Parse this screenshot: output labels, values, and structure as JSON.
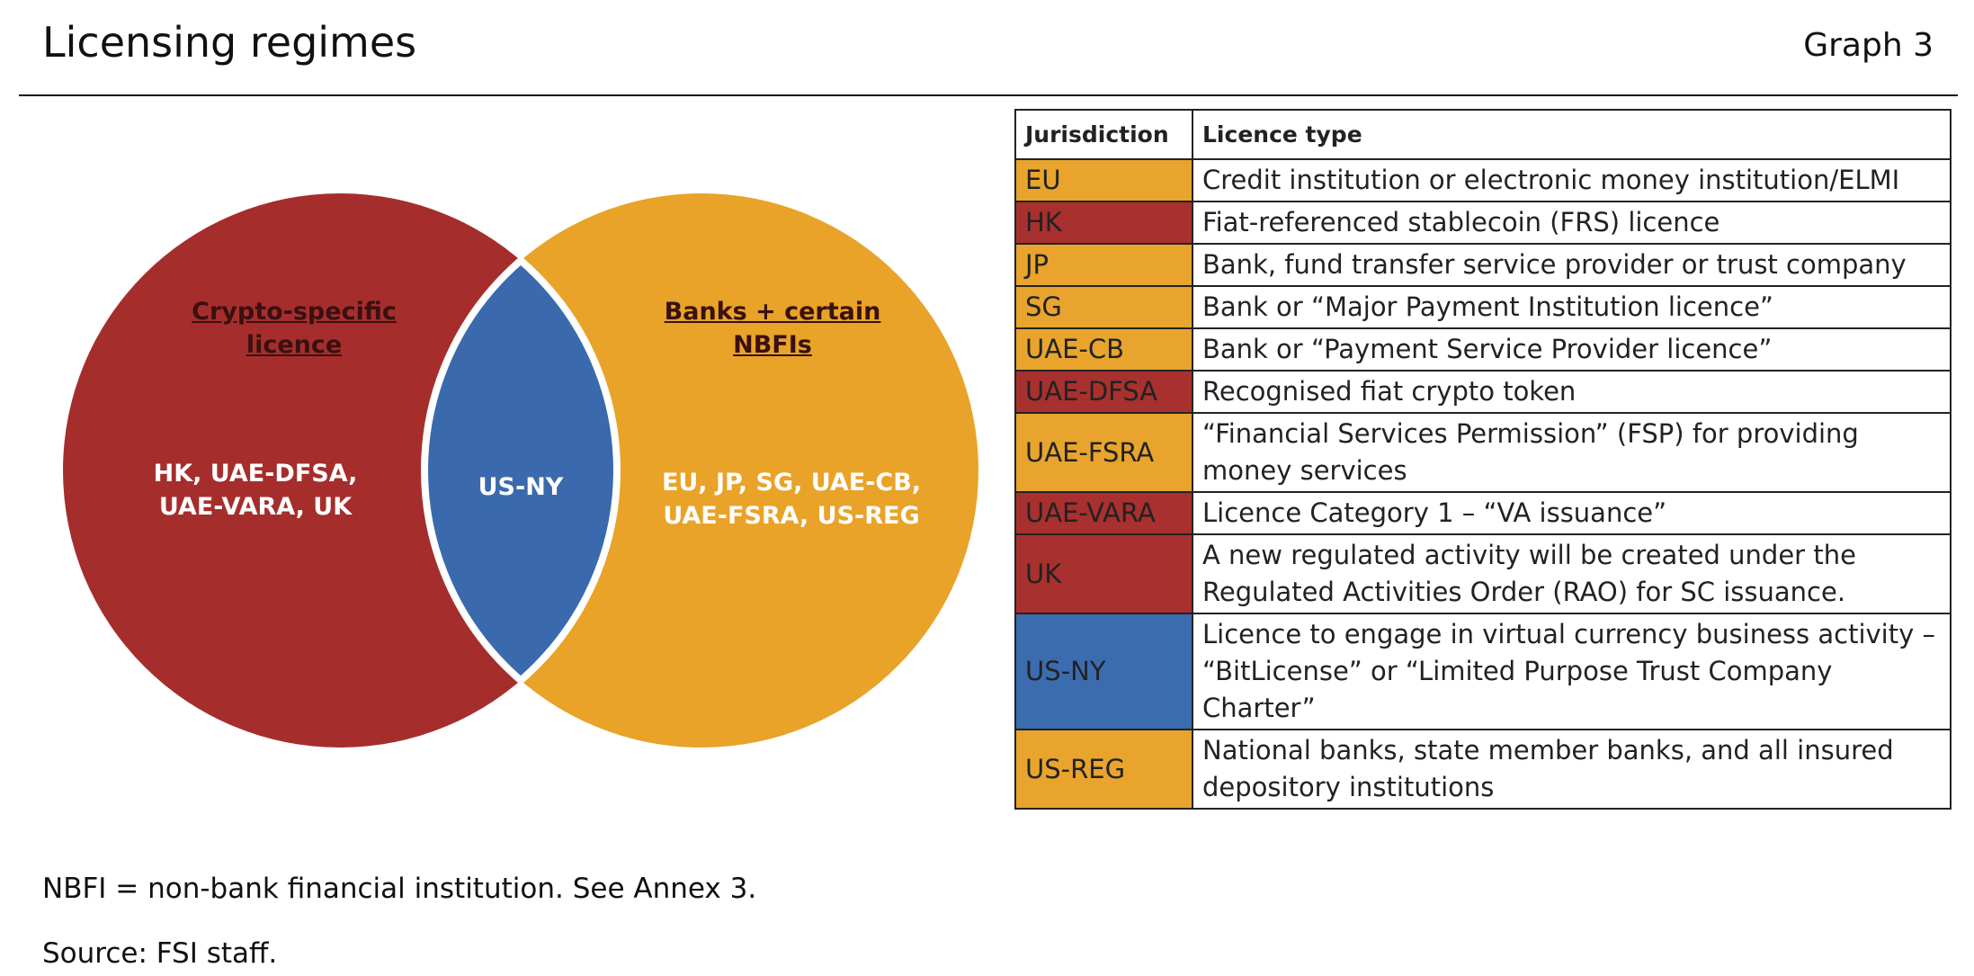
{
  "header": {
    "title": "Licensing regimes",
    "label": "Graph 3"
  },
  "venn": {
    "left": {
      "heading": [
        "Crypto-specific",
        "licence"
      ],
      "members": [
        "HK, UAE-DFSA,",
        "UAE-VARA, UK"
      ]
    },
    "overlap": {
      "members": "US-NY"
    },
    "right": {
      "heading": [
        "Banks + certain",
        "NBFIs"
      ],
      "members": [
        "EU, JP, SG, UAE-CB,",
        "UAE-FSRA, US-REG"
      ]
    }
  },
  "table": {
    "header": [
      "Jurisdiction",
      "Licence type"
    ],
    "rows": [
      [
        "EU",
        "Credit institution or electronic money institution/ELMI"
      ],
      [
        "HK",
        "Fiat-referenced stablecoin (FRS) licence"
      ],
      [
        "JP",
        "Bank, fund transfer service provider or trust company"
      ],
      [
        "SG",
        "Bank or “Major Payment Institution licence”"
      ],
      [
        "UAE-CB",
        "Bank or “Payment Service Provider licence”"
      ],
      [
        "UAE-DFSA",
        "Recognised fiat crypto token"
      ],
      [
        "UAE-FSRA",
        "“Financial Services Permission” (FSP) for providing money services"
      ],
      [
        "UAE-VARA",
        "Licence Category 1 – “VA issuance”"
      ],
      [
        "UK",
        "A new regulated activity will be created under the Regulated Activities Order (RAO) for SC issuance."
      ],
      [
        "US-NY",
        "Licence to engage in virtual currency business activity – “BitLicense” or “Limited Purpose Trust Company Charter”"
      ],
      [
        "US-REG",
        "National banks, state member banks, and all insured depository institutions"
      ]
    ]
  },
  "footnotes": [
    "NBFI = non-bank financial institution. See Annex 3.",
    "Source: FSI staff."
  ]
}
